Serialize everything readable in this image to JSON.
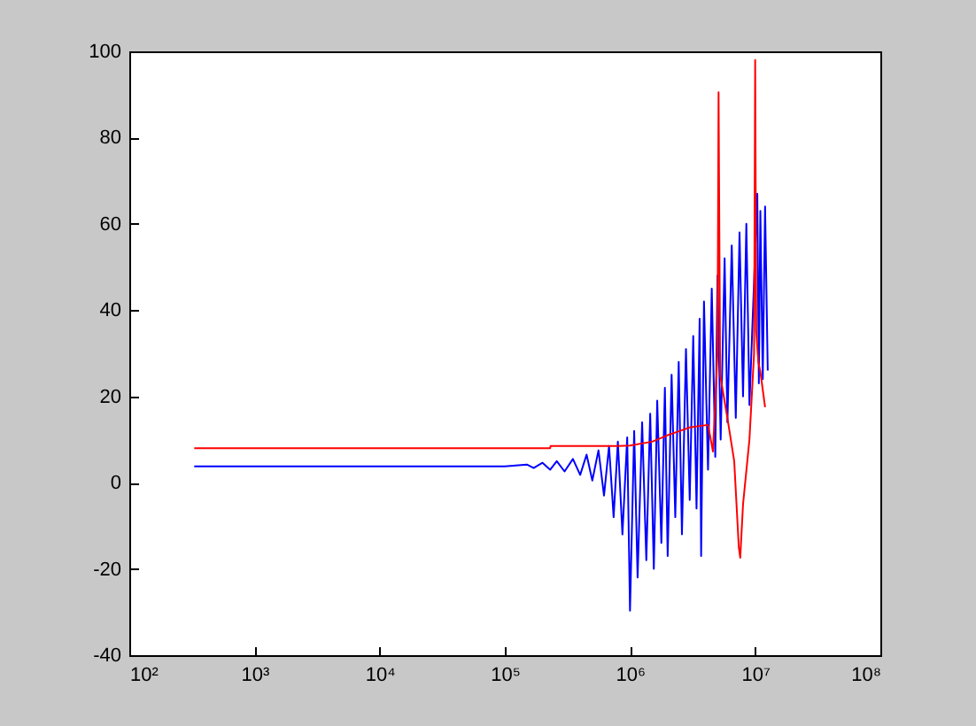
{
  "chart_data": {
    "type": "line",
    "log": "x",
    "xlim": [
      100,
      100000000
    ],
    "ylim": [
      -40,
      100
    ],
    "xticks": [
      {
        "value": 100,
        "label": "10²"
      },
      {
        "value": 1000,
        "label": "10³"
      },
      {
        "value": 10000,
        "label": "10⁴"
      },
      {
        "value": 100000,
        "label": "10⁵"
      },
      {
        "value": 1000000,
        "label": "10⁶"
      },
      {
        "value": 10000000,
        "label": "10⁷"
      },
      {
        "value": 100000000,
        "label": "10⁸"
      }
    ],
    "yticks": [
      -40,
      -20,
      0,
      20,
      40,
      60,
      80,
      100
    ],
    "series": [
      {
        "color": "#0000ff",
        "x": [
          330,
          100000,
          150000,
          170000,
          200000,
          230000,
          260000,
          300000,
          350000,
          400000,
          450000,
          500000,
          560000,
          620000,
          680000,
          740000,
          800000,
          870000,
          950000,
          1000000,
          1080000,
          1150000,
          1250000,
          1350000,
          1450000,
          1550000,
          1650000,
          1780000,
          1900000,
          2000000,
          2150000,
          2300000,
          2450000,
          2600000,
          2800000,
          3000000,
          3200000,
          3400000,
          3600000,
          3700000,
          3900000,
          4200000,
          4500000,
          4800000,
          5000000,
          5300000,
          5700000,
          6000000,
          6500000,
          7000000,
          7500000,
          8000000,
          8500000,
          9000000,
          10400000,
          10700000,
          11000000,
          11500000,
          12000000,
          12600000
        ],
        "values": [
          3.8,
          3.8,
          4.2,
          3.4,
          4.6,
          3,
          5,
          2.6,
          5.5,
          1.8,
          6.5,
          0.5,
          7.5,
          -3,
          8.5,
          -8,
          9.5,
          -12,
          10.5,
          -29.7,
          12,
          -22,
          14,
          -18,
          16,
          -20,
          19,
          -14,
          22,
          -17,
          25,
          -8,
          28,
          -12,
          31,
          -4,
          34,
          -6,
          38,
          -17,
          42,
          3,
          45,
          6,
          48,
          10,
          52,
          14,
          55,
          15,
          58,
          20,
          60,
          18,
          67,
          23,
          63,
          24,
          64,
          26
        ]
      },
      {
        "color": "#ff0000",
        "x": [
          330,
          230000,
          232000,
          800000,
          1000000,
          1500000,
          2000000,
          3000000,
          4200000,
          4600000,
          5000000,
          5100000,
          5250000,
          6000000,
          6800000,
          7400000,
          7600000,
          8000000,
          9000000,
          9800000,
          10000000,
          10200000,
          10600000,
          11000000,
          12000000
        ],
        "values": [
          8,
          8,
          8.5,
          8.5,
          8.6,
          9.5,
          11,
          12.8,
          13.4,
          7.2,
          30,
          90.5,
          25,
          15,
          5,
          -15,
          -17.4,
          -5,
          10,
          30,
          98,
          35,
          28,
          25.7,
          17.5
        ]
      }
    ]
  }
}
